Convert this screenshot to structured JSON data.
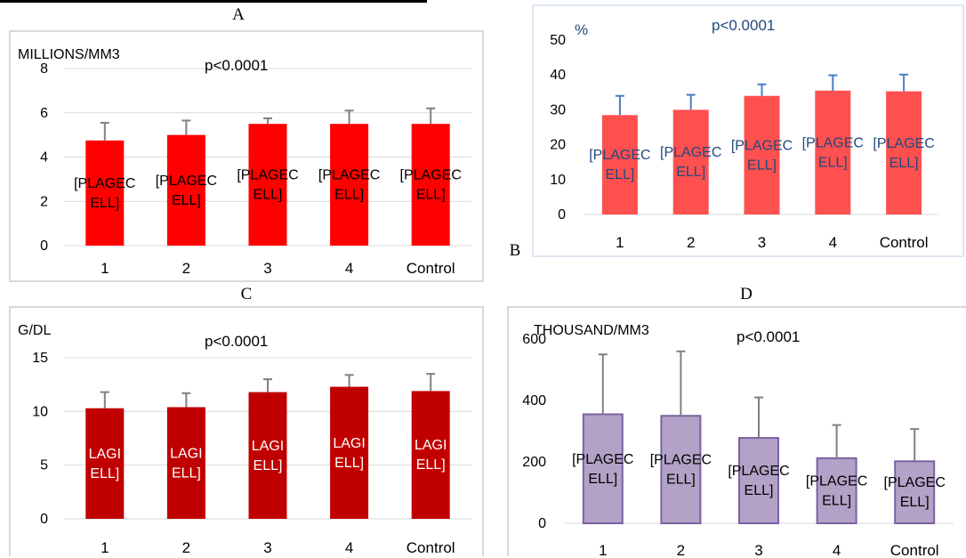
{
  "chart_data": [
    {
      "id": "A",
      "type": "bar",
      "panel_letter": "A",
      "unit": "MILLIONS/MM3",
      "pvalue": "p<0.0001",
      "categories": [
        "1",
        "2",
        "3",
        "4",
        "Control"
      ],
      "values": [
        4.75,
        5.0,
        5.5,
        5.5,
        5.5
      ],
      "errors": [
        0.8,
        0.65,
        0.25,
        0.6,
        0.7
      ],
      "data_labels": [
        "[PLAGEC ELL]",
        "[PLAGEC ELL]",
        "[PLAGEC ELL]",
        "[PLAGEC ELL]",
        "[PLAGEC ELL]"
      ],
      "ylim": [
        0,
        8
      ],
      "yticks": [
        "0",
        "2",
        "4",
        "6",
        "8"
      ],
      "color": "#ff0000",
      "error_color": "#808080"
    },
    {
      "id": "B",
      "type": "bar",
      "panel_letter": "B",
      "unit": "%",
      "pvalue": "p<0.0001",
      "categories": [
        "1",
        "2",
        "3",
        "4",
        "Control"
      ],
      "values": [
        28.5,
        30.0,
        34.0,
        35.5,
        35.3
      ],
      "errors": [
        5.5,
        4.3,
        3.3,
        4.4,
        4.8
      ],
      "data_labels": [
        "[PLAGEC ELL]",
        "[PLAGEC ELL]",
        "[PLAGEC ELL]",
        "[PLAGEC ELL]",
        "[PLAGEC ELL]"
      ],
      "ylim": [
        0,
        50
      ],
      "yticks": [
        "0",
        "10",
        "20",
        "30",
        "40",
        "50"
      ],
      "color": "#ff5050",
      "error_color": "#4a7ec4"
    },
    {
      "id": "C",
      "type": "bar",
      "panel_letter": "C",
      "unit": "G/DL",
      "pvalue": "p<0.0001",
      "categories": [
        "1",
        "2",
        "3",
        "4",
        "Control"
      ],
      "values": [
        10.3,
        10.4,
        11.8,
        12.3,
        11.9
      ],
      "errors": [
        1.5,
        1.3,
        1.2,
        1.1,
        1.6
      ],
      "data_labels": [
        "LAGI ELL]",
        "LAGI ELL]",
        "LAGI ELL]",
        "LAGI ELL]",
        "LAGI ELL]"
      ],
      "ylim": [
        0,
        15
      ],
      "yticks": [
        "0",
        "5",
        "10",
        "15"
      ],
      "color": "#c00000",
      "error_color": "#808080"
    },
    {
      "id": "D",
      "type": "bar",
      "panel_letter": "D",
      "unit": "THOUSAND/MM3",
      "pvalue": "p<0.0001",
      "categories": [
        "1",
        "2",
        "3",
        "4",
        "Control"
      ],
      "values": [
        355,
        350,
        278,
        212,
        202
      ],
      "errors": [
        195,
        210,
        132,
        108,
        105
      ],
      "data_labels": [
        "[PLAGEC ELL]",
        "[PLAGEC ELL]",
        "[PLAGEC ELL]",
        "[PLAGEC ELL]",
        "[PLAGEC ELL]"
      ],
      "ylim": [
        0,
        600
      ],
      "yticks": [
        "0",
        "200",
        "400",
        "600"
      ],
      "color": "#b3a2c7",
      "border_color": "#7a62a3",
      "error_color": "#808080"
    }
  ]
}
